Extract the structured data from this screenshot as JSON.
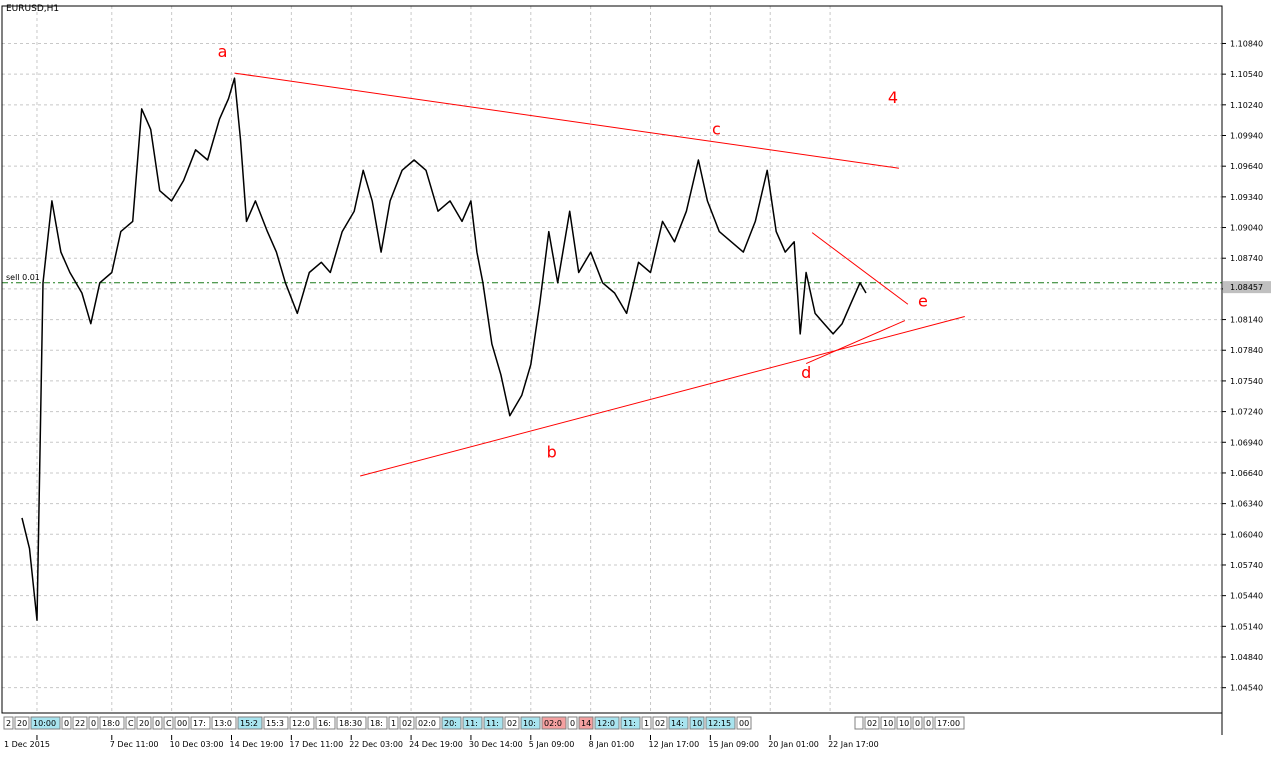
{
  "chart_title": "EURUSD,H1",
  "chart_data": {
    "type": "line",
    "symbol": "EURUSD",
    "timeframe": "H1",
    "title": "EURUSD,H1",
    "ylim": [
      1.044,
      1.1105
    ],
    "grid": true,
    "grid_style": "dashed",
    "y_ticks": [
      "1.10840",
      "1.10540",
      "1.10240",
      "1.09940",
      "1.09640",
      "1.09340",
      "1.09040",
      "1.08740",
      "1.08440",
      "1.08140",
      "1.07840",
      "1.07540",
      "1.07240",
      "1.06940",
      "1.06640",
      "1.06340",
      "1.06040",
      "1.05740",
      "1.05440",
      "1.05140",
      "1.04840",
      "1.04540"
    ],
    "x_ticks": [
      "1 Dec 2015",
      "7 Dec 11:00",
      "10 Dec 03:00",
      "14 Dec 19:00",
      "17 Dec 11:00",
      "22 Dec 03:00",
      "24 Dec 19:00",
      "30 Dec 14:00",
      "5 Jan 09:00",
      "8 Jan 01:00",
      "12 Jan 17:00",
      "15 Jan 09:00",
      "20 Jan 01:00",
      "22 Jan 17:00"
    ],
    "x_tick_index": [
      0.5,
      3,
      5,
      7,
      9,
      11,
      13,
      15,
      17,
      19,
      21,
      23,
      25,
      27
    ],
    "price_series": [
      {
        "t": 0,
        "p": 1.062
      },
      {
        "t": 0.25,
        "p": 1.059
      },
      {
        "t": 0.5,
        "p": 1.052
      },
      {
        "t": 0.7,
        "p": 1.085
      },
      {
        "t": 1.0,
        "p": 1.093
      },
      {
        "t": 1.3,
        "p": 1.088
      },
      {
        "t": 1.6,
        "p": 1.086
      },
      {
        "t": 2.0,
        "p": 1.084
      },
      {
        "t": 2.3,
        "p": 1.081
      },
      {
        "t": 2.6,
        "p": 1.085
      },
      {
        "t": 3.0,
        "p": 1.086
      },
      {
        "t": 3.3,
        "p": 1.09
      },
      {
        "t": 3.7,
        "p": 1.091
      },
      {
        "t": 4.0,
        "p": 1.102
      },
      {
        "t": 4.3,
        "p": 1.1
      },
      {
        "t": 4.6,
        "p": 1.094
      },
      {
        "t": 5.0,
        "p": 1.093
      },
      {
        "t": 5.4,
        "p": 1.095
      },
      {
        "t": 5.8,
        "p": 1.098
      },
      {
        "t": 6.2,
        "p": 1.097
      },
      {
        "t": 6.6,
        "p": 1.101
      },
      {
        "t": 6.9,
        "p": 1.103
      },
      {
        "t": 7.1,
        "p": 1.105
      },
      {
        "t": 7.3,
        "p": 1.099
      },
      {
        "t": 7.5,
        "p": 1.091
      },
      {
        "t": 7.8,
        "p": 1.093
      },
      {
        "t": 8.2,
        "p": 1.09
      },
      {
        "t": 8.5,
        "p": 1.088
      },
      {
        "t": 8.8,
        "p": 1.085
      },
      {
        "t": 9.2,
        "p": 1.082
      },
      {
        "t": 9.6,
        "p": 1.086
      },
      {
        "t": 10.0,
        "p": 1.087
      },
      {
        "t": 10.3,
        "p": 1.086
      },
      {
        "t": 10.7,
        "p": 1.09
      },
      {
        "t": 11.1,
        "p": 1.092
      },
      {
        "t": 11.4,
        "p": 1.096
      },
      {
        "t": 11.7,
        "p": 1.093
      },
      {
        "t": 12.0,
        "p": 1.088
      },
      {
        "t": 12.3,
        "p": 1.093
      },
      {
        "t": 12.7,
        "p": 1.096
      },
      {
        "t": 13.1,
        "p": 1.097
      },
      {
        "t": 13.5,
        "p": 1.096
      },
      {
        "t": 13.9,
        "p": 1.092
      },
      {
        "t": 14.3,
        "p": 1.093
      },
      {
        "t": 14.7,
        "p": 1.091
      },
      {
        "t": 15.0,
        "p": 1.093
      },
      {
        "t": 15.2,
        "p": 1.088
      },
      {
        "t": 15.4,
        "p": 1.085
      },
      {
        "t": 15.7,
        "p": 1.079
      },
      {
        "t": 16.0,
        "p": 1.076
      },
      {
        "t": 16.3,
        "p": 1.072
      },
      {
        "t": 16.7,
        "p": 1.074
      },
      {
        "t": 17.0,
        "p": 1.077
      },
      {
        "t": 17.3,
        "p": 1.083
      },
      {
        "t": 17.6,
        "p": 1.09
      },
      {
        "t": 17.9,
        "p": 1.085
      },
      {
        "t": 18.3,
        "p": 1.092
      },
      {
        "t": 18.6,
        "p": 1.086
      },
      {
        "t": 19.0,
        "p": 1.088
      },
      {
        "t": 19.4,
        "p": 1.085
      },
      {
        "t": 19.8,
        "p": 1.084
      },
      {
        "t": 20.2,
        "p": 1.082
      },
      {
        "t": 20.6,
        "p": 1.087
      },
      {
        "t": 21.0,
        "p": 1.086
      },
      {
        "t": 21.4,
        "p": 1.091
      },
      {
        "t": 21.8,
        "p": 1.089
      },
      {
        "t": 22.2,
        "p": 1.092
      },
      {
        "t": 22.6,
        "p": 1.097
      },
      {
        "t": 22.9,
        "p": 1.093
      },
      {
        "t": 23.3,
        "p": 1.09
      },
      {
        "t": 23.7,
        "p": 1.089
      },
      {
        "t": 24.1,
        "p": 1.088
      },
      {
        "t": 24.5,
        "p": 1.091
      },
      {
        "t": 24.9,
        "p": 1.096
      },
      {
        "t": 25.2,
        "p": 1.09
      },
      {
        "t": 25.5,
        "p": 1.088
      },
      {
        "t": 25.8,
        "p": 1.089
      },
      {
        "t": 26.0,
        "p": 1.08
      },
      {
        "t": 26.2,
        "p": 1.086
      },
      {
        "t": 26.5,
        "p": 1.082
      },
      {
        "t": 26.8,
        "p": 1.081
      },
      {
        "t": 27.1,
        "p": 1.08
      },
      {
        "t": 27.4,
        "p": 1.081
      },
      {
        "t": 27.7,
        "p": 1.083
      },
      {
        "t": 28.0,
        "p": 1.085
      },
      {
        "t": 28.2,
        "p": 1.084
      }
    ],
    "current_price": "1.08457",
    "order_line": {
      "label": "sell 0.01",
      "price": 1.085
    },
    "trendlines": [
      {
        "name": "upper-a-c",
        "from": {
          "t": 7.1,
          "p": 1.1055
        },
        "to": {
          "t": 29.3,
          "p": 1.0962
        }
      },
      {
        "name": "lower-b-d",
        "from": {
          "t": 11.3,
          "p": 1.0661
        },
        "to": {
          "t": 31.5,
          "p": 1.0817
        }
      },
      {
        "name": "inner-d-e-upper",
        "from": {
          "t": 26.4,
          "p": 1.0899
        },
        "to": {
          "t": 29.6,
          "p": 1.0829
        }
      },
      {
        "name": "inner-d-e-lower",
        "from": {
          "t": 26.2,
          "p": 1.0771
        },
        "to": {
          "t": 29.5,
          "p": 1.0813
        }
      }
    ],
    "wave_labels": [
      {
        "text": "a",
        "t": 6.7,
        "p": 1.1071
      },
      {
        "text": "b",
        "t": 17.7,
        "p": 1.0679
      },
      {
        "text": "c",
        "t": 23.2,
        "p": 1.0995
      },
      {
        "text": "d",
        "t": 26.2,
        "p": 1.0757
      },
      {
        "text": "e",
        "t": 30.1,
        "p": 1.0827
      },
      {
        "text": "4",
        "t": 29.1,
        "p": 1.1026
      }
    ]
  },
  "time_chips": [
    {
      "text": "2",
      "hl": ""
    },
    {
      "text": "20",
      "hl": ""
    },
    {
      "text": "10:00",
      "hl": "cyan"
    },
    {
      "text": "0",
      "hl": ""
    },
    {
      "text": "22",
      "hl": ""
    },
    {
      "text": "0",
      "hl": ""
    },
    {
      "text": "18:0",
      "hl": ""
    },
    {
      "text": "C",
      "hl": ""
    },
    {
      "text": "20",
      "hl": ""
    },
    {
      "text": "0",
      "hl": ""
    },
    {
      "text": "C",
      "hl": ""
    },
    {
      "text": "00",
      "hl": ""
    },
    {
      "text": "17:",
      "hl": ""
    },
    {
      "text": "13:0",
      "hl": ""
    },
    {
      "text": "15:2",
      "hl": "cyan"
    },
    {
      "text": "15:3",
      "hl": ""
    },
    {
      "text": "12:0",
      "hl": ""
    },
    {
      "text": "16:",
      "hl": ""
    },
    {
      "text": "18:30",
      "hl": ""
    },
    {
      "text": "18:",
      "hl": ""
    },
    {
      "text": "1",
      "hl": ""
    },
    {
      "text": "02",
      "hl": ""
    },
    {
      "text": "02:0",
      "hl": ""
    },
    {
      "text": "20:",
      "hl": "cyan"
    },
    {
      "text": "11:",
      "hl": "cyan"
    },
    {
      "text": "11:",
      "hl": "cyan"
    },
    {
      "text": "02",
      "hl": ""
    },
    {
      "text": "10:",
      "hl": "cyan"
    },
    {
      "text": "02:0",
      "hl": "red"
    },
    {
      "text": "0",
      "hl": ""
    },
    {
      "text": "14",
      "hl": "red"
    },
    {
      "text": "12:0",
      "hl": "cyan"
    },
    {
      "text": "11:",
      "hl": "cyan"
    },
    {
      "text": "1",
      "hl": ""
    },
    {
      "text": "02",
      "hl": ""
    },
    {
      "text": "14:",
      "hl": "cyan"
    },
    {
      "text": "10",
      "hl": "cyan"
    },
    {
      "text": "12:15",
      "hl": "cyan"
    },
    {
      "text": "00",
      "hl": ""
    },
    {
      "text": "",
      "hl": ""
    },
    {
      "text": "02",
      "hl": ""
    },
    {
      "text": "10",
      "hl": ""
    },
    {
      "text": "10",
      "hl": ""
    },
    {
      "text": "0",
      "hl": ""
    },
    {
      "text": "0",
      "hl": ""
    },
    {
      "text": "17:00",
      "hl": ""
    }
  ],
  "colors": {
    "background": "#ffffff",
    "price_line": "#000000",
    "grid": "#c8c8c8",
    "trendline": "#ff0000",
    "wave_label": "#ff0000",
    "order_line": "#1b7a1b",
    "chip_cyan": "#a8e4ef",
    "chip_red": "#f4a0a0",
    "price_tag_bg": "#c0c0c0"
  }
}
